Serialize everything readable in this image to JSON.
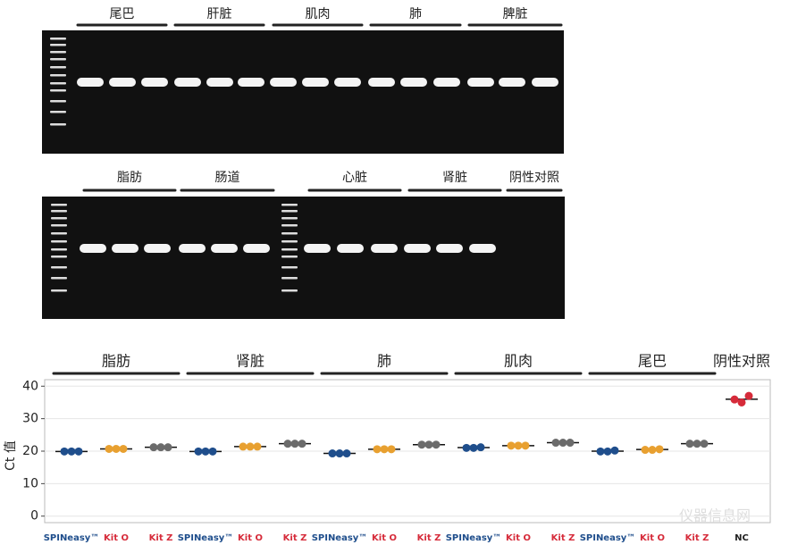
{
  "gel1": {
    "labels": [
      "尾巴",
      "肝脏",
      "肌肉",
      "肺",
      "脾脏"
    ]
  },
  "gel2": {
    "labels": [
      "脂肪",
      "肠道",
      "心脏",
      "肾脏",
      "阴性对照"
    ]
  },
  "watermark": "仪器信息网",
  "chart_data": {
    "type": "dot",
    "groups": [
      "脂肪",
      "肾脏",
      "肺",
      "肌肉",
      "尾巴",
      "阴性对照"
    ],
    "categories": [
      "SPINeasy™",
      "Kit O",
      "Kit Z",
      "SPINeasy™",
      "Kit O",
      "Kit Z",
      "SPINeasy™",
      "Kit O",
      "Kit Z",
      "SPINeasy™",
      "Kit O",
      "Kit Z",
      "SPINeasy™",
      "Kit O",
      "Kit Z",
      "NC"
    ],
    "category_colors": [
      "#1f4e8c",
      "#d62b3a",
      "#d62b3a",
      "#1f4e8c",
      "#d62b3a",
      "#d62b3a",
      "#1f4e8c",
      "#d62b3a",
      "#d62b3a",
      "#1f4e8c",
      "#d62b3a",
      "#d62b3a",
      "#1f4e8c",
      "#d62b3a",
      "#d62b3a",
      "#222222"
    ],
    "colors": [
      "#1f4e8c",
      "#e8a030",
      "#6b6b6b",
      "#1f4e8c",
      "#e8a030",
      "#6b6b6b",
      "#1f4e8c",
      "#e8a030",
      "#6b6b6b",
      "#1f4e8c",
      "#e8a030",
      "#6b6b6b",
      "#1f4e8c",
      "#e8a030",
      "#6b6b6b",
      "#d62b3a"
    ],
    "values": [
      [
        19.9,
        19.9,
        19.9
      ],
      [
        20.7,
        20.7,
        20.7
      ],
      [
        21.2,
        21.2,
        21.2
      ],
      [
        19.9,
        19.9,
        19.9
      ],
      [
        21.4,
        21.4,
        21.4
      ],
      [
        22.3,
        22.3,
        22.3
      ],
      [
        19.3,
        19.3,
        19.3
      ],
      [
        20.6,
        20.6,
        20.6
      ],
      [
        22.0,
        22.0,
        22.0
      ],
      [
        21.0,
        21.0,
        21.2
      ],
      [
        21.7,
        21.7,
        21.7
      ],
      [
        22.6,
        22.6,
        22.6
      ],
      [
        19.9,
        19.9,
        20.2
      ],
      [
        20.4,
        20.4,
        20.6
      ],
      [
        22.3,
        22.3,
        22.3
      ],
      [
        35.9,
        35.0,
        37.0
      ]
    ],
    "means": [
      19.9,
      20.7,
      21.2,
      19.9,
      21.4,
      22.3,
      19.3,
      20.6,
      22.0,
      21.1,
      21.7,
      22.6,
      20.0,
      20.5,
      22.3,
      36.0
    ],
    "ylabel": "Ct 值",
    "ylim": [
      -2,
      42
    ],
    "yticks": [
      0,
      10,
      20,
      30,
      40
    ],
    "grid": true
  }
}
